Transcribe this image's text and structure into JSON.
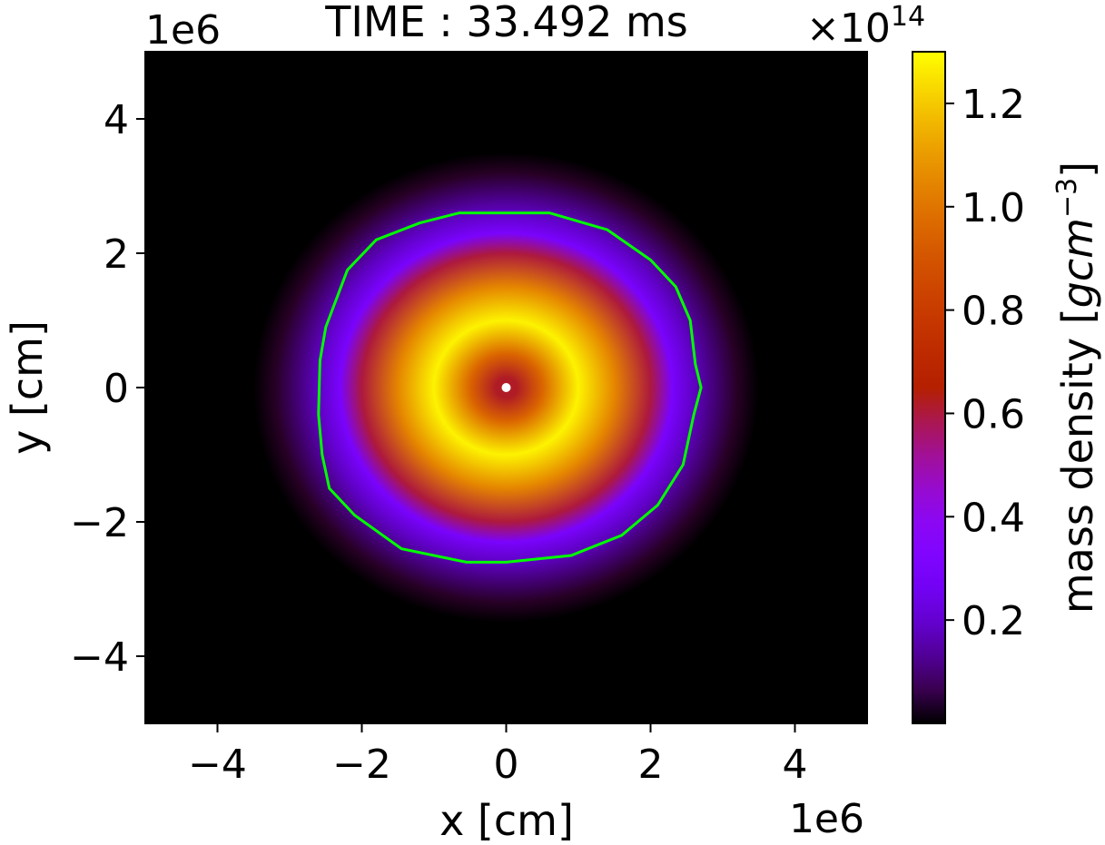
{
  "chart_data": {
    "type": "heatmap",
    "title": "TIME : 33.492 ms",
    "xlabel": "x [cm]",
    "ylabel": "y [cm]",
    "x_offset_text": "1e6",
    "y_offset_text": "1e6",
    "xlim": [
      -5,
      5
    ],
    "ylim": [
      -5,
      5
    ],
    "xticks": [
      -4,
      -2,
      0,
      2,
      4
    ],
    "yticks": [
      -4,
      -2,
      0,
      2,
      4
    ],
    "xtick_labels": [
      "−4",
      "−2",
      "0",
      "2",
      "4"
    ],
    "ytick_labels": [
      "−4",
      "−2",
      "0",
      "2",
      "4"
    ],
    "grid": false,
    "colormap": "gnuplot",
    "colorbar": {
      "label": "mass density [gcm⁻³]",
      "label_main": "mass density [",
      "label_units": "gcm",
      "label_exp": "−3",
      "label_close": "]",
      "offset_text": "×10",
      "offset_exp": "14",
      "range": [
        0.0,
        1.3
      ],
      "ticks": [
        0.2,
        0.4,
        0.6,
        0.8,
        1.0,
        1.2
      ],
      "tick_labels": [
        "0.2",
        "0.4",
        "0.6",
        "0.8",
        "1.0",
        "1.2"
      ]
    },
    "density_profile": {
      "description_units": "x1e6 cm radius vs x1e14 g/cm^3",
      "radius": [
        0.0,
        0.15,
        0.5,
        1.0,
        1.5,
        2.0,
        2.3,
        2.6,
        3.2,
        3.5
      ],
      "density": [
        0.62,
        0.62,
        0.95,
        1.28,
        1.05,
        0.6,
        0.3,
        0.18,
        0.03,
        0.0
      ]
    },
    "contour": {
      "color": "#00ff00",
      "points": [
        [
          -0.65,
          2.6
        ],
        [
          0.6,
          2.6
        ],
        [
          1.4,
          2.35
        ],
        [
          2.0,
          1.9
        ],
        [
          2.35,
          1.5
        ],
        [
          2.55,
          1.0
        ],
        [
          2.62,
          0.35
        ],
        [
          2.7,
          0.0
        ],
        [
          2.6,
          -0.4
        ],
        [
          2.45,
          -1.15
        ],
        [
          2.1,
          -1.75
        ],
        [
          1.6,
          -2.2
        ],
        [
          0.9,
          -2.5
        ],
        [
          0.0,
          -2.6
        ],
        [
          -0.55,
          -2.6
        ],
        [
          -1.45,
          -2.4
        ],
        [
          -2.1,
          -1.9
        ],
        [
          -2.45,
          -1.5
        ],
        [
          -2.55,
          -1.0
        ],
        [
          -2.6,
          -0.4
        ],
        [
          -2.58,
          0.4
        ],
        [
          -2.5,
          0.9
        ],
        [
          -2.2,
          1.75
        ],
        [
          -1.8,
          2.2
        ],
        [
          -1.2,
          2.45
        ]
      ]
    },
    "center_marker": {
      "x": 0,
      "y": 0,
      "color": "#ffffff"
    }
  }
}
